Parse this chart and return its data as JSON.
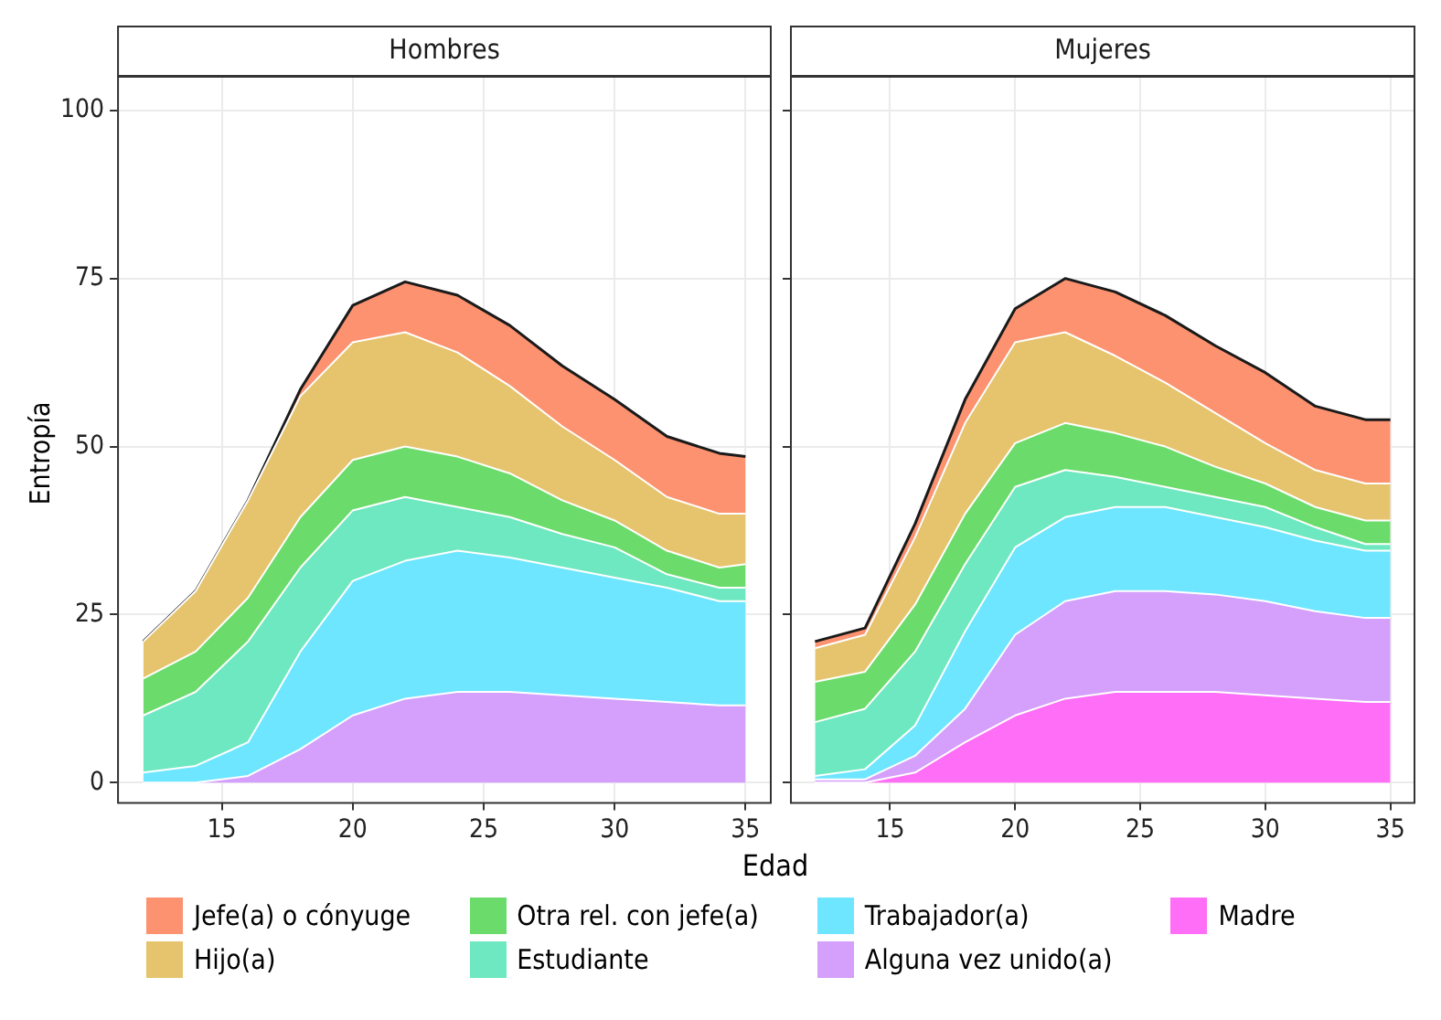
{
  "chart_data": [
    {
      "type": "area",
      "title": "Hombres",
      "xlabel": "Edad",
      "ylabel": "Entropía",
      "stacked": true,
      "grid": true,
      "legend": "bottom",
      "xlim": [
        11,
        36
      ],
      "xticks": [
        15,
        20,
        25,
        30,
        35
      ],
      "ylim": [
        -3,
        105
      ],
      "yticks": [
        0,
        25,
        50,
        75,
        100
      ],
      "x": [
        12,
        14,
        16,
        18,
        20,
        22,
        24,
        26,
        28,
        30,
        32,
        34,
        35
      ],
      "series": [
        {
          "name": "Alguna vez unido(a)",
          "color": "#d4a0fb",
          "values": [
            0,
            0,
            1,
            5,
            10,
            12.5,
            13.5,
            13.5,
            13,
            12.5,
            12,
            11.5,
            11.5
          ]
        },
        {
          "name": "Trabajador(a)",
          "color": "#6ee6ff",
          "values": [
            1.5,
            2.5,
            5,
            14.5,
            20,
            20.5,
            21,
            20,
            19,
            18,
            17,
            15.5,
            15.5
          ]
        },
        {
          "name": "Estudiante",
          "color": "#6ee8c0",
          "values": [
            8.5,
            11,
            15,
            12.5,
            10.5,
            9.5,
            6.5,
            6,
            5,
            4.5,
            2,
            2,
            2
          ]
        },
        {
          "name": "Otra rel. con jefe(a)",
          "color": "#6bdc6b",
          "values": [
            5.5,
            6,
            6.5,
            7.5,
            7.5,
            7.5,
            7.5,
            6.5,
            5,
            4,
            3.5,
            3,
            3.5
          ]
        },
        {
          "name": "Hijo(a)",
          "color": "#e6c46e",
          "values": [
            5.5,
            9,
            14.5,
            18,
            17.5,
            17,
            15.5,
            13,
            11,
            9,
            8,
            8,
            7.5
          ]
        },
        {
          "name": "Jefe(a) o cónyuge",
          "color": "#fc9270",
          "values": [
            0,
            0,
            0,
            1,
            5.5,
            7.5,
            8.5,
            9,
            9,
            9,
            9,
            9,
            8.5
          ]
        }
      ]
    },
    {
      "type": "area",
      "title": "Mujeres",
      "stacked": true,
      "grid": true,
      "legend": "bottom",
      "tick_labels": "x",
      "xlim": [
        11,
        36
      ],
      "xticks": [
        15,
        20,
        25,
        30,
        35
      ],
      "ylim": [
        -3,
        105
      ],
      "yticks": [
        0,
        25,
        50,
        75,
        100
      ],
      "x": [
        12,
        14,
        16,
        18,
        20,
        22,
        24,
        26,
        28,
        30,
        32,
        34,
        35
      ],
      "series": [
        {
          "name": "Madre",
          "color": "#ff6ef6",
          "values": [
            0,
            0,
            1.5,
            6,
            10,
            12.5,
            13.5,
            13.5,
            13.5,
            13,
            12.5,
            12,
            12
          ]
        },
        {
          "name": "Alguna vez unido(a)",
          "color": "#d4a0fb",
          "values": [
            0.5,
            0.5,
            2.5,
            5,
            12,
            14.5,
            15,
            15,
            14.5,
            14,
            13,
            12.5,
            12.5
          ]
        },
        {
          "name": "Trabajador(a)",
          "color": "#6ee6ff",
          "values": [
            0.5,
            1.5,
            4.5,
            11.5,
            13,
            12.5,
            12.5,
            12.5,
            11.5,
            11,
            10.5,
            10,
            10
          ]
        },
        {
          "name": "Estudiante",
          "color": "#6ee8c0",
          "values": [
            8,
            9,
            11,
            10,
            9,
            7,
            4.5,
            3,
            3,
            3,
            2,
            1,
            1
          ]
        },
        {
          "name": "Otra rel. con jefe(a)",
          "color": "#6bdc6b",
          "values": [
            6,
            5.5,
            7,
            7.5,
            6.5,
            7,
            6.5,
            6,
            4.5,
            3.5,
            3,
            3.5,
            3.5
          ]
        },
        {
          "name": "Hijo(a)",
          "color": "#e6c46e",
          "values": [
            5,
            5.5,
            10,
            13.5,
            15,
            13.5,
            11.5,
            9.5,
            8,
            6,
            5.5,
            5.5,
            5.5
          ]
        },
        {
          "name": "Jefe(a) o cónyuge",
          "color": "#fc9270",
          "values": [
            1,
            1,
            2,
            3.5,
            5,
            8,
            9.5,
            10,
            10,
            10.5,
            9.5,
            9.5,
            9.5
          ]
        }
      ]
    }
  ]
}
